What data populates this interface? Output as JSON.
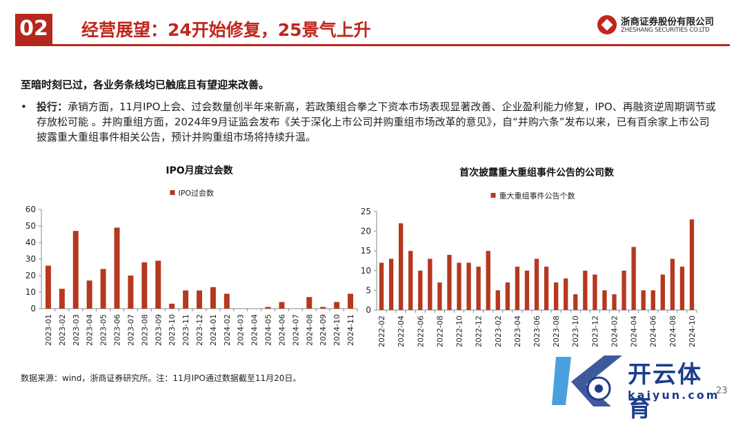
{
  "header": {
    "number": "02",
    "title": "经营展望：24开始修复，25景气上升",
    "logo_cn": "浙商证券股份有限公司",
    "logo_en": "ZHESHANG SECURITIES CO.LTD"
  },
  "lead": "至暗时刻已过，各业务条线均已触底且有望迎来改善。",
  "bullet": {
    "label": "投行：",
    "text": "承销方面，11月IPO上会、过会数量创半年来新高，若政策组合拳之下资本市场表现显著改善、企业盈利能力修复，IPO、再融资逆周期调节或存放松可能 。并购重组方面，2024年9月证监会发布《关于深化上市公司并购重组市场改革的意见》，自“并购六条”发布以来，已有百余家上市公司披露重大重组事件相关公告，预计并购重组市场将持续升温。"
  },
  "chart_data": [
    {
      "type": "bar",
      "title": "IPO月度过会数",
      "series": [
        {
          "name": "IPO过会数",
          "values": [
            26,
            12,
            47,
            17,
            24,
            49,
            20,
            28,
            29,
            3,
            11,
            11,
            13,
            9,
            0,
            0,
            1,
            4,
            0,
            7,
            1,
            4,
            9
          ]
        }
      ],
      "categories": [
        "2023-01",
        "2023-02",
        "2023-03",
        "2023-04",
        "2023-05",
        "2023-06",
        "2023-07",
        "2023-08",
        "2023-09",
        "2023-10",
        "2023-11",
        "2023-12",
        "2024-01",
        "2024-02",
        "2024-03",
        "2024-04",
        "2024-05",
        "2024-06",
        "2024-07",
        "2024-08",
        "2024-09",
        "2024-10",
        "2024-11"
      ],
      "ylim": [
        0,
        60
      ],
      "yticks": [
        0,
        10,
        20,
        30,
        40,
        50,
        60
      ],
      "legend": "top-center",
      "grid": false,
      "color": "#b5381f"
    },
    {
      "type": "bar",
      "title": "首次披露重大重组事件公告的公司数",
      "series": [
        {
          "name": "重大重组事件公告个数",
          "values": [
            12,
            13,
            22,
            15,
            10,
            13,
            7,
            14,
            12,
            12,
            11,
            15,
            5,
            7,
            11,
            10,
            13,
            11,
            7,
            8,
            4,
            10,
            9,
            5,
            4,
            10,
            16,
            5,
            5,
            9,
            13,
            11,
            23
          ]
        }
      ],
      "categories": [
        "2022-02",
        "2022-03",
        "2022-04",
        "2022-05",
        "2022-06",
        "2022-07",
        "2022-08",
        "2022-09",
        "2022-10",
        "2022-11",
        "2022-12",
        "2023-01",
        "2023-02",
        "2023-03",
        "2023-04",
        "2023-05",
        "2023-06",
        "2023-07",
        "2023-08",
        "2023-09",
        "2023-10",
        "2023-11",
        "2023-12",
        "2024-01",
        "2024-02",
        "2024-03",
        "2024-04",
        "2024-05",
        "2024-06",
        "2024-07",
        "2024-08",
        "2024-09",
        "2024-10"
      ],
      "tick_labels": [
        "2022-02",
        "2022-04",
        "2022-06",
        "2022-08",
        "2022-10",
        "2022-12",
        "2023-02",
        "2023-04",
        "2023-06",
        "2023-08",
        "2023-10",
        "2023-12",
        "2024-02",
        "2024-04",
        "2024-06",
        "2024-08",
        "2024-10"
      ],
      "ylim": [
        0,
        25
      ],
      "yticks": [
        0,
        5,
        10,
        15,
        20,
        25
      ],
      "legend": "top-center",
      "grid": false,
      "color": "#b5381f"
    }
  ],
  "source": "数据来源：wind，浙商证券研究所。注：11月IPO通过数据截至11月20日。",
  "page_number": "23",
  "watermark": {
    "text": "开云体育",
    "sub": "kaiyun.com"
  }
}
